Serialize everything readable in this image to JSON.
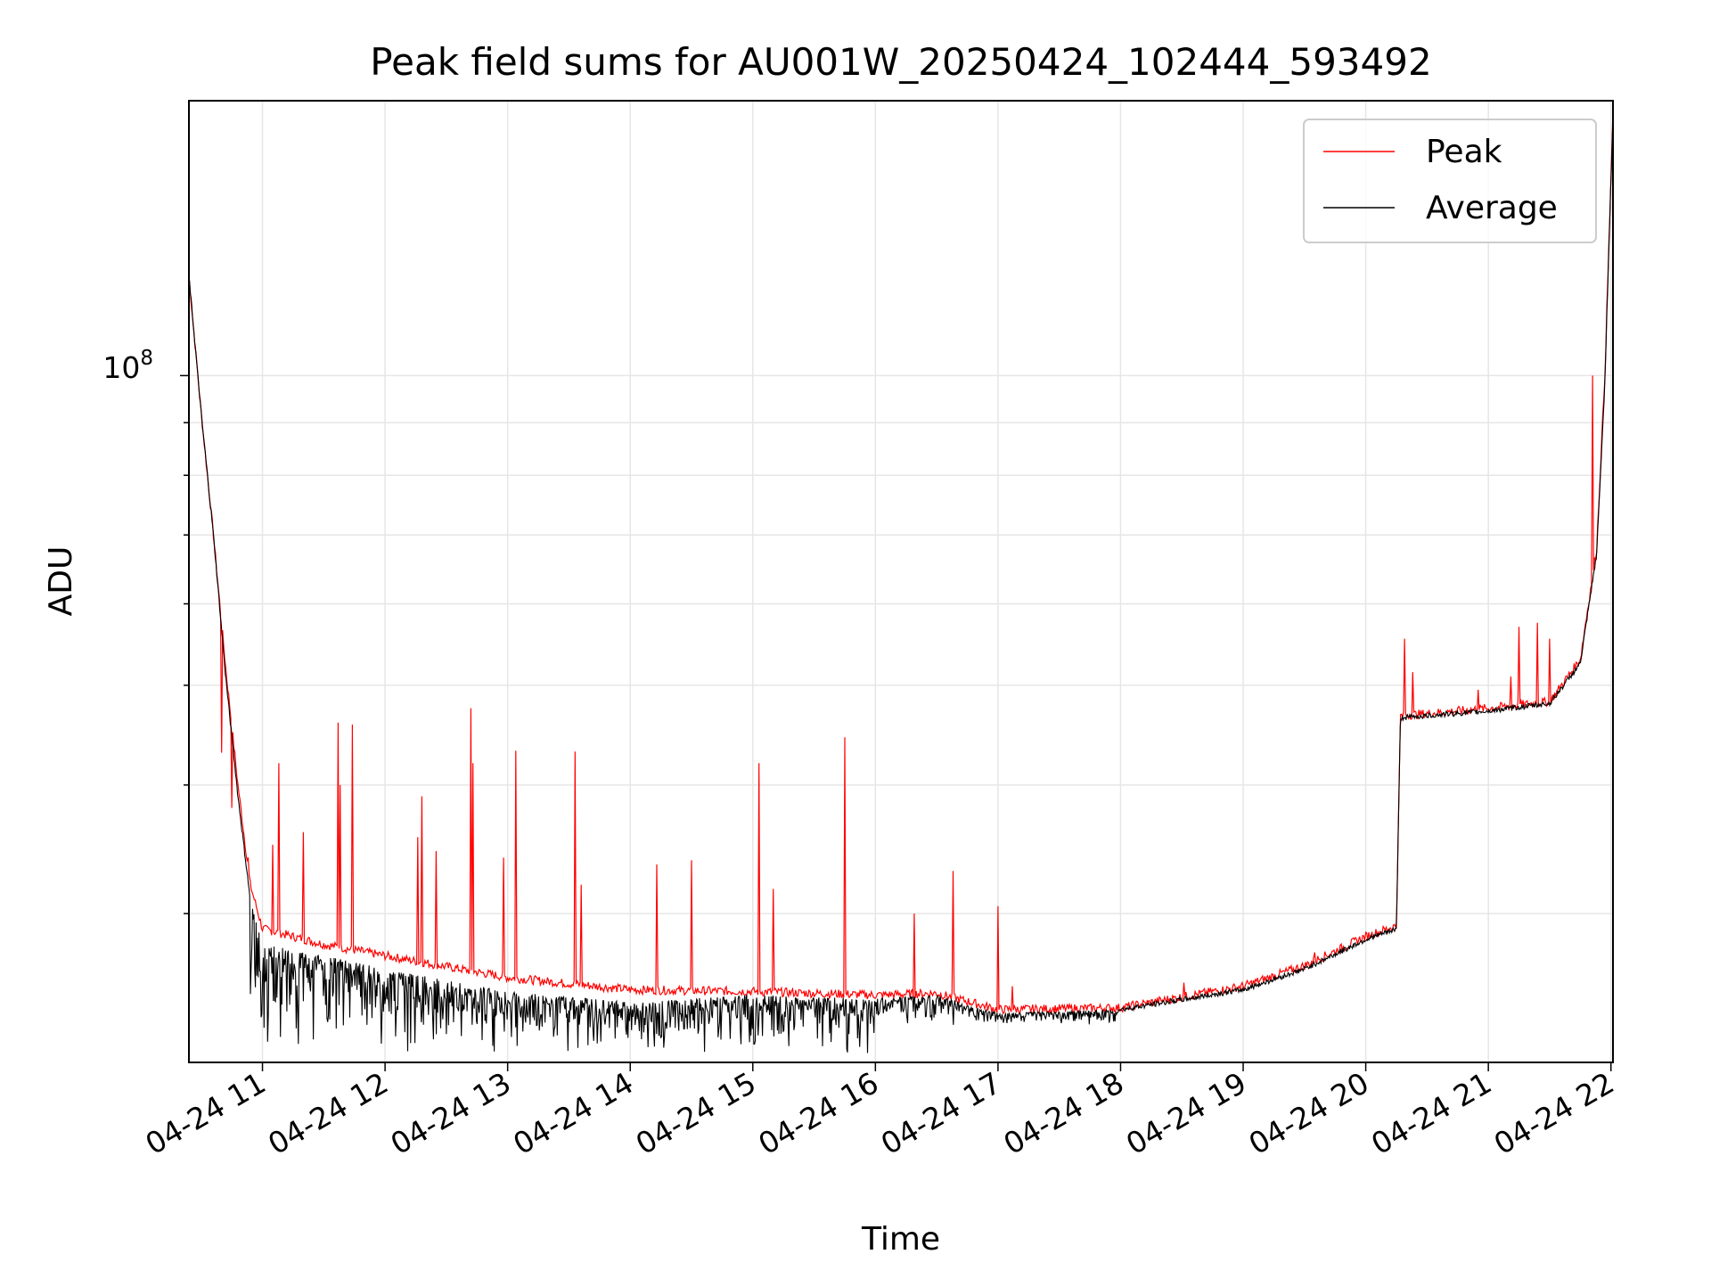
{
  "chart_data": {
    "type": "line",
    "title": "Peak field sums for AU001W_20250424_102444_593492",
    "xlabel": "Time",
    "ylabel": "ADU",
    "y_scale": "log",
    "x_range": [
      "2025-04-24 10:24",
      "2025-04-24 22:01"
    ],
    "y_range": [
      21500000,
      185000000
    ],
    "x_ticks": [
      "04-24 11",
      "04-24 12",
      "04-24 13",
      "04-24 14",
      "04-24 15",
      "04-24 16",
      "04-24 17",
      "04-24 18",
      "04-24 19",
      "04-24 20",
      "04-24 21",
      "04-24 22"
    ],
    "y_ticks_labeled": [
      {
        "value": 100000000,
        "base": "10",
        "exponent": "8"
      }
    ],
    "grid": true,
    "legend_position": "top-right",
    "series": [
      {
        "name": "Peak",
        "color": "#ff0000",
        "baseline_points": [
          [
            "2025-04-24 10:24",
            125000000
          ],
          [
            "2025-04-24 10:30",
            92000000
          ],
          [
            "2025-04-24 10:36",
            70000000
          ],
          [
            "2025-04-24 10:42",
            52000000
          ],
          [
            "2025-04-24 10:48",
            40000000
          ],
          [
            "2025-04-24 10:54",
            32000000
          ],
          [
            "2025-04-24 11:00",
            29000000
          ],
          [
            "2025-04-24 11:30",
            28000000
          ],
          [
            "2025-04-24 12:00",
            27300000
          ],
          [
            "2025-04-24 13:00",
            26000000
          ],
          [
            "2025-04-24 14:00",
            25300000
          ],
          [
            "2025-04-24 15:00",
            25200000
          ],
          [
            "2025-04-24 16:00",
            25000000
          ],
          [
            "2025-04-24 16:30",
            25100000
          ],
          [
            "2025-04-24 17:00",
            24200000
          ],
          [
            "2025-04-24 18:00",
            24300000
          ],
          [
            "2025-04-24 19:00",
            25500000
          ],
          [
            "2025-04-24 19:30",
            26700000
          ],
          [
            "2025-04-24 20:00",
            28500000
          ],
          [
            "2025-04-24 20:15",
            29200000
          ],
          [
            "2025-04-24 20:17",
            46700000
          ],
          [
            "2025-04-24 21:00",
            47500000
          ],
          [
            "2025-04-24 21:30",
            48200000
          ],
          [
            "2025-04-24 21:45",
            53000000
          ],
          [
            "2025-04-24 21:53",
            68000000
          ],
          [
            "2025-04-24 21:57",
            100000000
          ],
          [
            "2025-04-24 22:01",
            180000000
          ]
        ],
        "spikes": [
          [
            "2025-04-24 10:40",
            43000000
          ],
          [
            "2025-04-24 10:45",
            38000000
          ],
          [
            "2025-04-24 10:53",
            34000000
          ],
          [
            "2025-04-24 11:05",
            35000000
          ],
          [
            "2025-04-24 11:08",
            42000000
          ],
          [
            "2025-04-24 11:20",
            36000000
          ],
          [
            "2025-04-24 11:37",
            46000000
          ],
          [
            "2025-04-24 11:38",
            40000000
          ],
          [
            "2025-04-24 11:44",
            45800000
          ],
          [
            "2025-04-24 12:16",
            35600000
          ],
          [
            "2025-04-24 12:18",
            39000000
          ],
          [
            "2025-04-24 12:25",
            34500000
          ],
          [
            "2025-04-24 12:42",
            47500000
          ],
          [
            "2025-04-24 12:43",
            42000000
          ],
          [
            "2025-04-24 12:58",
            34000000
          ],
          [
            "2025-04-24 13:04",
            43200000
          ],
          [
            "2025-04-24 13:33",
            43100000
          ],
          [
            "2025-04-24 13:36",
            32000000
          ],
          [
            "2025-04-24 14:13",
            33500000
          ],
          [
            "2025-04-24 14:30",
            33800000
          ],
          [
            "2025-04-24 15:03",
            42000000
          ],
          [
            "2025-04-24 15:10",
            31700000
          ],
          [
            "2025-04-24 15:45",
            44500000
          ],
          [
            "2025-04-24 16:19",
            30000000
          ],
          [
            "2025-04-24 16:38",
            33000000
          ],
          [
            "2025-04-24 17:00",
            30500000
          ],
          [
            "2025-04-24 17:07",
            25500000
          ],
          [
            "2025-04-24 18:31",
            25700000
          ],
          [
            "2025-04-24 19:35",
            27500000
          ],
          [
            "2025-04-24 20:19",
            55500000
          ],
          [
            "2025-04-24 20:23",
            51500000
          ],
          [
            "2025-04-24 20:55",
            49500000
          ],
          [
            "2025-04-24 21:11",
            51000000
          ],
          [
            "2025-04-24 21:15",
            57000000
          ],
          [
            "2025-04-24 21:24",
            57500000
          ],
          [
            "2025-04-24 21:30",
            55500000
          ],
          [
            "2025-04-24 21:51",
            100000000
          ]
        ]
      },
      {
        "name": "Average",
        "color": "#000000",
        "baseline_points": [
          [
            "2025-04-24 10:24",
            125000000
          ],
          [
            "2025-04-24 10:30",
            92000000
          ],
          [
            "2025-04-24 10:36",
            70000000
          ],
          [
            "2025-04-24 10:42",
            51000000
          ],
          [
            "2025-04-24 10:48",
            39000000
          ],
          [
            "2025-04-24 10:54",
            31000000
          ],
          [
            "2025-04-24 11:00",
            28000000
          ],
          [
            "2025-04-24 11:30",
            27300000
          ],
          [
            "2025-04-24 12:00",
            26500000
          ],
          [
            "2025-04-24 13:00",
            25200000
          ],
          [
            "2025-04-24 14:00",
            24600000
          ],
          [
            "2025-04-24 15:00",
            25000000
          ],
          [
            "2025-04-24 16:00",
            24800000
          ],
          [
            "2025-04-24 16:30",
            25000000
          ],
          [
            "2025-04-24 17:00",
            24000000
          ],
          [
            "2025-04-24 18:00",
            24200000
          ],
          [
            "2025-04-24 19:00",
            25300000
          ],
          [
            "2025-04-24 19:30",
            26500000
          ],
          [
            "2025-04-24 20:00",
            28300000
          ],
          [
            "2025-04-24 20:15",
            29000000
          ],
          [
            "2025-04-24 20:17",
            46500000
          ],
          [
            "2025-04-24 21:00",
            47200000
          ],
          [
            "2025-04-24 21:30",
            48000000
          ],
          [
            "2025-04-24 21:45",
            52500000
          ],
          [
            "2025-04-24 21:53",
            67000000
          ],
          [
            "2025-04-24 21:57",
            98000000
          ],
          [
            "2025-04-24 22:01",
            180000000
          ]
        ],
        "noise_ranges": [
          [
            "2025-04-24 10:54",
            "2025-04-24 16:00",
            21800000
          ],
          [
            "2025-04-24 16:00",
            "2025-04-24 18:00",
            23300000
          ]
        ]
      }
    ]
  }
}
